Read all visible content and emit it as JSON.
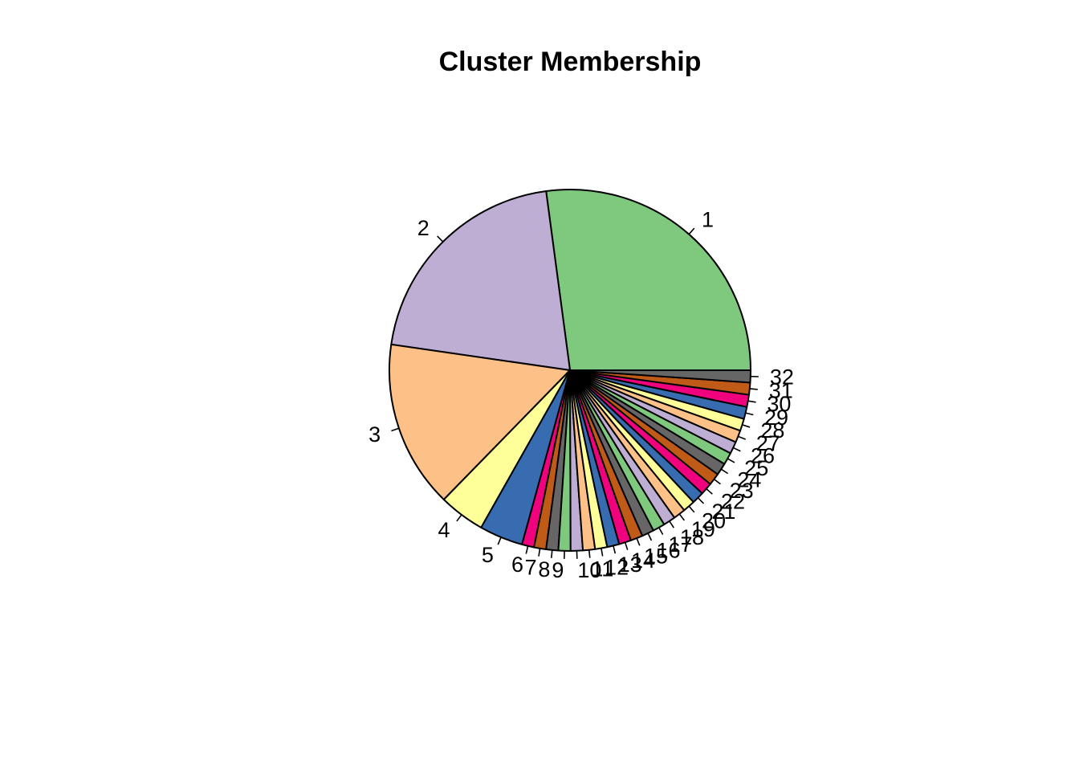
{
  "chart_data": {
    "type": "pie",
    "title": "Cluster Membership",
    "labels": [
      "1",
      "2",
      "3",
      "4",
      "5",
      "6",
      "7",
      "8",
      "9",
      "10",
      "11",
      "12",
      "13",
      "14",
      "15",
      "16",
      "17",
      "18",
      "19",
      "20",
      "21",
      "22",
      "23",
      "24",
      "25",
      "26",
      "27",
      "28",
      "29",
      "30",
      "31",
      "32"
    ],
    "values": [
      25.0,
      19.0,
      13.8,
      3.8,
      3.6,
      1.0,
      1.0,
      1.0,
      1.0,
      1.0,
      1.0,
      1.0,
      1.0,
      1.0,
      1.0,
      1.0,
      1.0,
      1.0,
      1.0,
      1.0,
      1.0,
      1.0,
      1.0,
      1.0,
      1.0,
      1.0,
      1.0,
      1.0,
      1.0,
      1.0,
      1.0,
      1.0
    ],
    "colors": [
      "#7fc97f",
      "#beaed4",
      "#fdc086",
      "#ffff99",
      "#386cb0",
      "#f0027f",
      "#bf5b17",
      "#666666",
      "#7fc97f",
      "#beaed4",
      "#fdc086",
      "#ffff99",
      "#386cb0",
      "#f0027f",
      "#bf5b17",
      "#666666",
      "#7fc97f",
      "#beaed4",
      "#fdc086",
      "#ffff99",
      "#386cb0",
      "#f0027f",
      "#bf5b17",
      "#666666",
      "#7fc97f",
      "#beaed4",
      "#fdc086",
      "#ffff99",
      "#386cb0",
      "#f0027f",
      "#bf5b17",
      "#666666"
    ],
    "direction": "counterclockwise",
    "start_angle_degrees": 0
  }
}
